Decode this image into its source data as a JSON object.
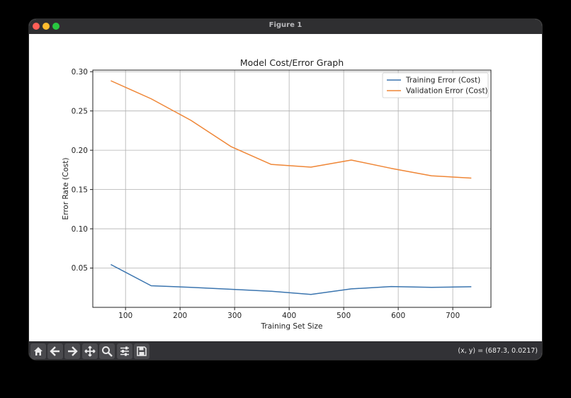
{
  "window": {
    "title": "Figure 1"
  },
  "toolbar": {
    "buttons": [
      {
        "name": "home-button",
        "icon": "home-icon"
      },
      {
        "name": "back-button",
        "icon": "arrow-left-icon"
      },
      {
        "name": "forward-button",
        "icon": "arrow-right-icon"
      },
      {
        "name": "pan-button",
        "icon": "move-icon"
      },
      {
        "name": "zoom-button",
        "icon": "magnifier-icon"
      },
      {
        "name": "configure-subplots-button",
        "icon": "sliders-icon"
      },
      {
        "name": "save-button",
        "icon": "floppy-icon"
      }
    ],
    "coordinates": "(x, y) = (687.3, 0.0217)"
  },
  "chart_data": {
    "type": "line",
    "title": "Model Cost/Error Graph",
    "xlabel": "Training Set Size",
    "ylabel": "Error Rate (Cost)",
    "xlim": [
      40,
      770
    ],
    "ylim": [
      0.0,
      0.302
    ],
    "xticks": [
      100,
      200,
      300,
      400,
      500,
      600,
      700
    ],
    "yticks": [
      0.05,
      0.1,
      0.15,
      0.2,
      0.25,
      0.3
    ],
    "ytick_labels": [
      "0.05",
      "0.10",
      "0.15",
      "0.20",
      "0.25",
      "0.30"
    ],
    "grid": true,
    "legend_position": "top-right",
    "x": [
      73,
      147,
      220,
      294,
      367,
      440,
      514,
      587,
      661,
      734
    ],
    "series": [
      {
        "name": "Training Error (Cost)",
        "color": "#3b75af",
        "values": [
          0.0545,
          0.0275,
          0.0255,
          0.023,
          0.0205,
          0.0165,
          0.0235,
          0.0265,
          0.0255,
          0.0262
        ]
      },
      {
        "name": "Validation Error (Cost)",
        "color": "#ef8636",
        "values": [
          0.2885,
          0.2655,
          0.238,
          0.2045,
          0.182,
          0.1785,
          0.1875,
          0.177,
          0.1675,
          0.1645
        ]
      }
    ]
  }
}
